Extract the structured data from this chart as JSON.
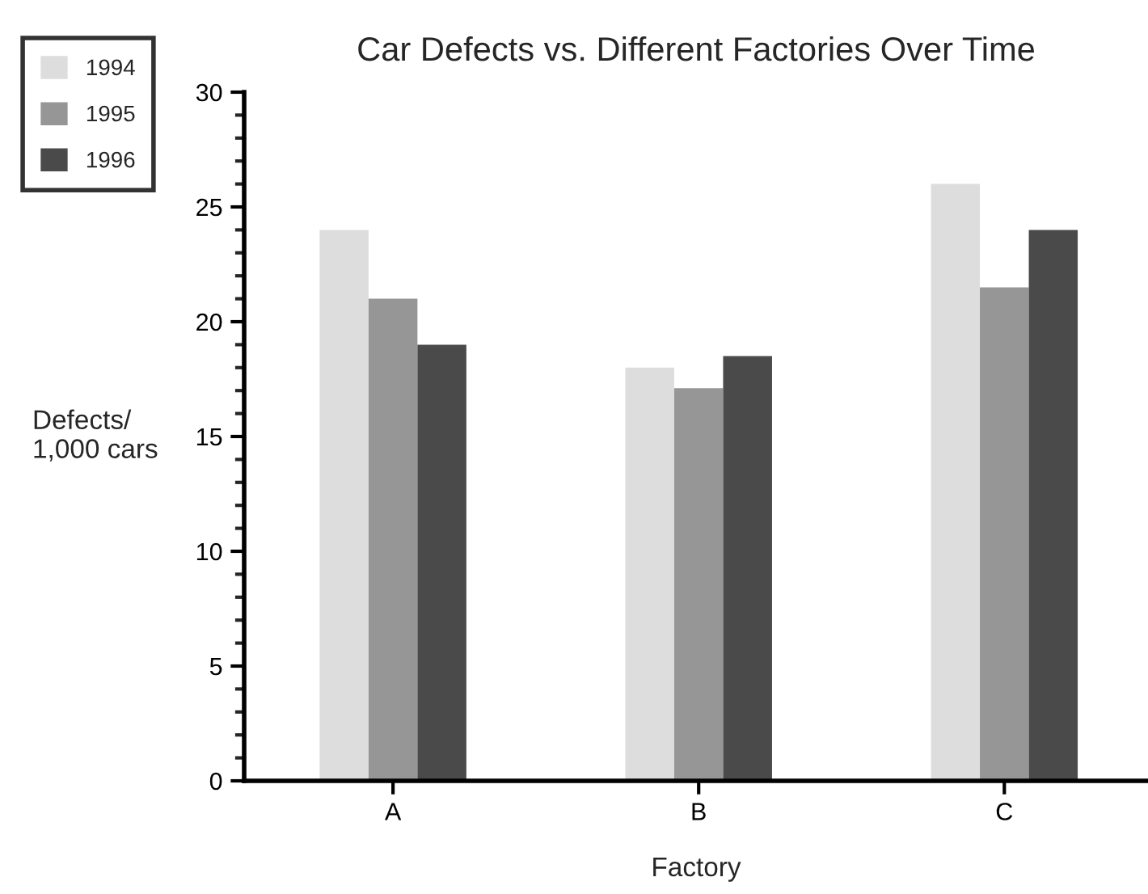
{
  "chart_data": {
    "type": "bar",
    "title": "Car Defects vs. Different Factories Over Time",
    "xlabel": "Factory",
    "ylabel": "Defects/\n1,000 cars",
    "categories": [
      "A",
      "B",
      "C"
    ],
    "series": [
      {
        "name": "1994",
        "color": "#dddddd",
        "values": [
          24,
          18,
          26
        ]
      },
      {
        "name": "1995",
        "color": "#969696",
        "values": [
          21,
          17.1,
          21.5
        ]
      },
      {
        "name": "1996",
        "color": "#4a4a4a",
        "values": [
          19,
          18.5,
          24
        ]
      }
    ],
    "ylim": [
      0,
      30
    ],
    "yticks": [
      0,
      5,
      10,
      15,
      20,
      25,
      30
    ],
    "grid": false,
    "legend": "top left"
  }
}
